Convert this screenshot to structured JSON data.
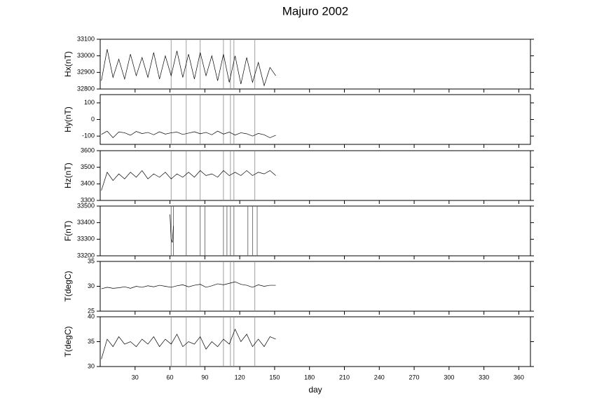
{
  "chart_data": [
    {
      "type": "line",
      "title": "Majuro 2002",
      "ylabel": "Hx(nT)",
      "color": "#000000",
      "spike_color": "#888888",
      "x": [
        1,
        6,
        11,
        16,
        21,
        26,
        31,
        36,
        41,
        46,
        51,
        56,
        61,
        66,
        71,
        76,
        81,
        86,
        91,
        96,
        101,
        106,
        111,
        116,
        121,
        126,
        131,
        136,
        141,
        146,
        151
      ],
      "values": [
        32850,
        33040,
        32870,
        32980,
        32860,
        33010,
        32880,
        32990,
        32870,
        33020,
        32860,
        33000,
        32880,
        33030,
        32870,
        33010,
        32860,
        33020,
        32880,
        33000,
        32850,
        33010,
        32840,
        33000,
        32830,
        32990,
        32840,
        32960,
        32820,
        32930,
        32880
      ],
      "spikes": [
        61,
        74,
        86,
        106,
        112,
        115,
        133
      ],
      "xlim": [
        0,
        370
      ],
      "xticks": [
        30,
        60,
        90,
        120,
        150,
        180,
        210,
        240,
        270,
        300,
        330,
        360
      ],
      "ylim": [
        32800,
        33100
      ],
      "yticks": [
        32800,
        32900,
        33000,
        33100
      ]
    },
    {
      "type": "line",
      "ylabel": "Hy(nT)",
      "color": "#000000",
      "spike_color": "#888888",
      "x": [
        1,
        6,
        11,
        16,
        21,
        26,
        31,
        36,
        41,
        46,
        51,
        56,
        61,
        66,
        71,
        76,
        81,
        86,
        91,
        96,
        101,
        106,
        111,
        116,
        121,
        126,
        131,
        136,
        141,
        146,
        151
      ],
      "values": [
        -90,
        -70,
        -110,
        -75,
        -80,
        -95,
        -72,
        -85,
        -78,
        -92,
        -74,
        -88,
        -80,
        -76,
        -90,
        -82,
        -74,
        -86,
        -78,
        -92,
        -70,
        -88,
        -76,
        -94,
        -80,
        -86,
        -100,
        -84,
        -92,
        -110,
        -95
      ],
      "spikes": [
        61,
        74,
        86,
        106,
        112,
        115,
        133
      ],
      "xlim": [
        0,
        370
      ],
      "xticks": [
        30,
        60,
        90,
        120,
        150,
        180,
        210,
        240,
        270,
        300,
        330,
        360
      ],
      "ylim": [
        -150,
        150
      ],
      "yticks": [
        -100,
        0,
        100
      ]
    },
    {
      "type": "line",
      "ylabel": "Hz(nT)",
      "color": "#000000",
      "spike_color": "#888888",
      "x": [
        1,
        6,
        11,
        16,
        21,
        26,
        31,
        36,
        41,
        46,
        51,
        56,
        61,
        66,
        71,
        76,
        81,
        86,
        91,
        96,
        101,
        106,
        111,
        116,
        121,
        126,
        131,
        136,
        141,
        146,
        151
      ],
      "values": [
        3360,
        3470,
        3420,
        3460,
        3430,
        3470,
        3440,
        3480,
        3430,
        3460,
        3440,
        3470,
        3430,
        3460,
        3440,
        3470,
        3440,
        3480,
        3450,
        3460,
        3440,
        3480,
        3450,
        3470,
        3450,
        3480,
        3450,
        3470,
        3460,
        3480,
        3450
      ],
      "spikes": [
        61,
        74,
        86,
        106,
        112,
        115,
        133
      ],
      "xlim": [
        0,
        370
      ],
      "xticks": [
        30,
        60,
        90,
        120,
        150,
        180,
        210,
        240,
        270,
        300,
        330,
        360
      ],
      "ylim": [
        3300,
        3600
      ],
      "yticks": [
        3300,
        3400,
        3500,
        3600
      ]
    },
    {
      "type": "line",
      "ylabel": "F(nT)",
      "color": "#000000",
      "spike_color": "#555555",
      "x": [
        60,
        61,
        62,
        63
      ],
      "values": [
        33450,
        33300,
        33280,
        33380
      ],
      "spikes": [
        61,
        63,
        74,
        86,
        90,
        106,
        109,
        112,
        115,
        127,
        131,
        135
      ],
      "xlim": [
        0,
        370
      ],
      "xticks": [
        30,
        60,
        90,
        120,
        150,
        180,
        210,
        240,
        270,
        300,
        330,
        360
      ],
      "ylim": [
        33200,
        33500
      ],
      "yticks": [
        33200,
        33300,
        33400,
        33500
      ]
    },
    {
      "type": "line",
      "ylabel": "T(degC)",
      "color": "#000000",
      "spike_color": "#888888",
      "x": [
        1,
        6,
        11,
        16,
        21,
        26,
        31,
        36,
        41,
        46,
        51,
        56,
        61,
        66,
        71,
        76,
        81,
        86,
        91,
        96,
        101,
        106,
        111,
        116,
        121,
        126,
        131,
        136,
        141,
        146,
        151
      ],
      "values": [
        29.5,
        29.8,
        29.6,
        29.7,
        29.9,
        29.6,
        30.0,
        29.8,
        30.1,
        29.9,
        30.2,
        30.0,
        29.8,
        30.1,
        30.3,
        29.9,
        30.2,
        30.4,
        29.8,
        30.1,
        30.5,
        30.3,
        30.6,
        30.9,
        30.4,
        30.2,
        29.8,
        30.3,
        30.0,
        30.2,
        30.2
      ],
      "spikes": [
        61,
        74,
        86,
        106,
        112,
        115,
        133
      ],
      "xlim": [
        0,
        370
      ],
      "xticks": [
        30,
        60,
        90,
        120,
        150,
        180,
        210,
        240,
        270,
        300,
        330,
        360
      ],
      "ylim": [
        25,
        35
      ],
      "yticks": [
        25,
        30,
        35
      ]
    },
    {
      "type": "line",
      "ylabel": "T(degC)",
      "xlabel": "day",
      "color": "#000000",
      "spike_color": "#888888",
      "x": [
        1,
        6,
        11,
        16,
        21,
        26,
        31,
        36,
        41,
        46,
        51,
        56,
        61,
        66,
        71,
        76,
        81,
        86,
        91,
        96,
        101,
        106,
        111,
        116,
        121,
        126,
        131,
        136,
        141,
        146,
        151
      ],
      "values": [
        31.5,
        35.5,
        34.0,
        36.0,
        34.5,
        35.0,
        34.0,
        35.5,
        34.5,
        36.0,
        34.0,
        35.5,
        34.5,
        36.5,
        34.0,
        35.0,
        34.5,
        36.0,
        33.5,
        35.0,
        34.0,
        35.5,
        34.5,
        37.5,
        35.0,
        36.5,
        34.0,
        35.5,
        34.0,
        36.0,
        35.5
      ],
      "spikes": [
        61,
        74,
        86,
        106,
        112,
        115,
        133
      ],
      "xlim": [
        0,
        370
      ],
      "xticks": [
        30,
        60,
        90,
        120,
        150,
        180,
        210,
        240,
        270,
        300,
        330,
        360
      ],
      "ylim": [
        30,
        40
      ],
      "yticks": [
        30,
        35,
        40
      ]
    }
  ]
}
